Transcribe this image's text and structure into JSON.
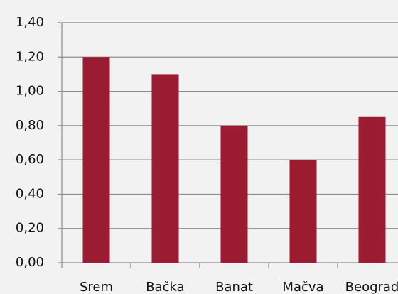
{
  "chart_data": {
    "type": "bar",
    "categories": [
      "Srem",
      "Bačka",
      "Banat",
      "Mačva",
      "Beograd"
    ],
    "values": [
      1.2,
      1.1,
      0.8,
      0.6,
      0.85
    ],
    "color": "#9b1b30",
    "ylim": [
      0,
      1.4
    ],
    "yticks": [
      {
        "value": 0,
        "label": "0,00"
      },
      {
        "value": 0.2,
        "label": "0,20"
      },
      {
        "value": 0.4,
        "label": "0,40"
      },
      {
        "value": 0.6,
        "label": "0,60"
      },
      {
        "value": 0.8,
        "label": "0,80"
      },
      {
        "value": 1.0,
        "label": "1,00"
      },
      {
        "value": 1.2,
        "label": "1,20"
      },
      {
        "value": 1.4,
        "label": "1,40"
      }
    ],
    "grid": true
  }
}
